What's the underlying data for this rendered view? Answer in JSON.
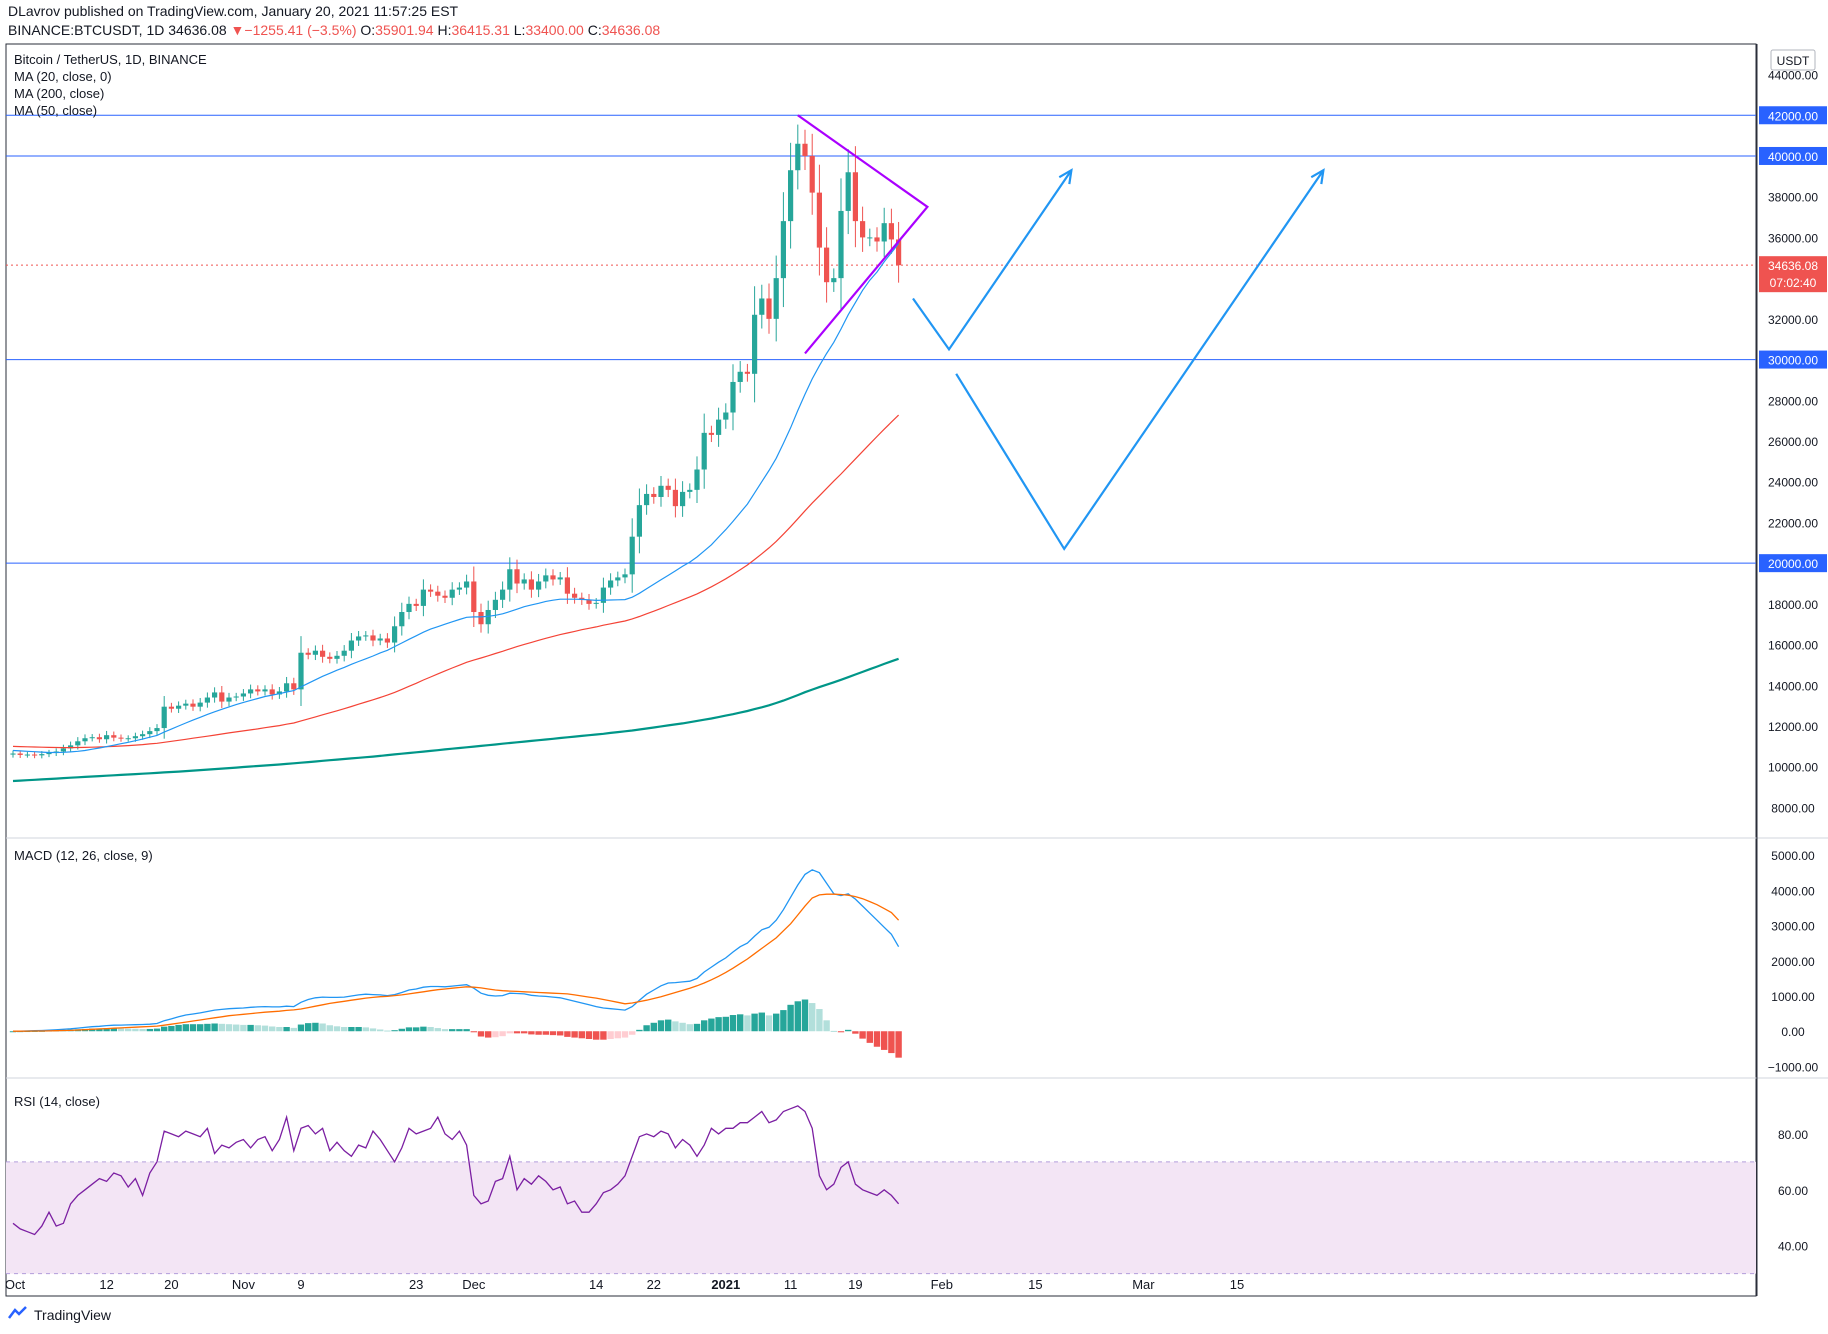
{
  "header": {
    "published_line": "DLavrov published on TradingView.com, January 20, 2021 11:57:25 EST",
    "symbol": "BINANCE:BTCUSDT, 1D",
    "last": "34636.08",
    "change": "−1255.41 (−3.5%)",
    "o_label": "O:",
    "o_val": "35901.94",
    "h_label": "H:",
    "h_val": "36415.31",
    "l_label": "L:",
    "l_val": "33400.00",
    "c_label": "C:",
    "c_val": "34636.08"
  },
  "legend": {
    "title": "Bitcoin / TetherUS, 1D, BINANCE",
    "ma20": "MA (20, close, 0)",
    "ma200": "MA (200, close)",
    "ma50": "MA (50, close)",
    "macd": "MACD (12, 26, close, 9)",
    "rsi": "RSI (14, close)"
  },
  "currency": "USDT",
  "price_badge": {
    "price": "34636.08",
    "countdown": "07:02:40"
  },
  "footer": {
    "brand": "TradingView"
  },
  "colors": {
    "up": "#26a69a",
    "down": "#ef5350",
    "ma20": "#2196f3",
    "ma50": "#f44336",
    "ma200": "#009688",
    "hline": "#2962ff",
    "triangle": "#aa00ff",
    "arrow": "#2196f3",
    "macd": "#2196f3",
    "signal": "#ff6d00",
    "rsi": "#7b1fa2",
    "rsi_band": "#f3e5f5"
  },
  "chart_data": {
    "type": "candlestick",
    "x_ticks": [
      "Oct",
      "12",
      "20",
      "Nov",
      "9",
      "23",
      "Dec",
      "14",
      "22",
      "2021",
      "11",
      "19",
      "Feb",
      "15",
      "Mar",
      "15"
    ],
    "price_axis_ticks": [
      "44000.00",
      "42000.00",
      "40000.00",
      "38000.00",
      "36000.00",
      "34000.00",
      "32000.00",
      "30000.00",
      "28000.00",
      "26000.00",
      "24000.00",
      "22000.00",
      "20000.00",
      "18000.00",
      "16000.00",
      "14000.00",
      "12000.00",
      "10000.00",
      "8000.00"
    ],
    "highlighted_levels": [
      "42000.00",
      "40000.00",
      "30000.00",
      "20000.00"
    ],
    "horizontal_levels": [
      42000,
      40000,
      30000,
      20000
    ],
    "price_range": [
      6500,
      45500
    ],
    "macd_axis_ticks": [
      "5000.00",
      "4000.00",
      "3000.00",
      "2000.00",
      "1000.00",
      "0.00",
      "−1000.00"
    ],
    "macd_range": [
      -1100,
      5200
    ],
    "rsi_axis_ticks": [
      "80.00",
      "60.00",
      "40.00"
    ],
    "rsi_range": [
      22,
      100
    ],
    "rsi_band": [
      30,
      70
    ],
    "closes": [
      10650,
      10580,
      10600,
      10560,
      10620,
      10680,
      10750,
      10900,
      11050,
      11250,
      11400,
      11450,
      11350,
      11550,
      11430,
      11380,
      11400,
      11500,
      11600,
      11750,
      11900,
      12950,
      12850,
      13000,
      13100,
      12950,
      13150,
      13400,
      13650,
      13200,
      13400,
      13450,
      13600,
      13800,
      13700,
      13800,
      13550,
      13700,
      14100,
      13800,
      15600,
      15500,
      15700,
      15400,
      15300,
      15450,
      15700,
      16200,
      16400,
      16450,
      16200,
      16300,
      16100,
      16900,
      17600,
      18000,
      17900,
      18700,
      18600,
      18400,
      18300,
      18700,
      18800,
      19100,
      17600,
      17000,
      17700,
      18200,
      18700,
      19700,
      19000,
      19200,
      18700,
      19100,
      19400,
      19200,
      19300,
      18500,
      18300,
      18200,
      18000,
      18050,
      18800,
      19150,
      19300,
      19450,
      21300,
      22850,
      23400,
      23250,
      23800,
      23600,
      22800,
      23500,
      23600,
      24600,
      26400,
      26300,
      27050,
      27400,
      28900,
      29400,
      29300,
      32200,
      33000,
      32000,
      34000,
      36800,
      39300,
      40600,
      40000,
      38200,
      35500,
      33800,
      34000,
      37300,
      39200,
      36800,
      36000,
      36000,
      35800,
      36700,
      35900,
      34636
    ],
    "ma20": [
      10800,
      10780,
      10760,
      10740,
      10720,
      10700,
      10700,
      10710,
      10730,
      10760,
      10800,
      10860,
      10920,
      10990,
      11060,
      11130,
      11200,
      11280,
      11360,
      11450,
      11540,
      11700,
      11850,
      12000,
      12150,
      12290,
      12430,
      12570,
      12700,
      12820,
      12940,
      13050,
      13160,
      13260,
      13350,
      13450,
      13520,
      13590,
      13670,
      13740,
      13920,
      14100,
      14270,
      14440,
      14590,
      14740,
      14880,
      15030,
      15170,
      15300,
      15440,
      15590,
      15720,
      15900,
      16080,
      16260,
      16430,
      16610,
      16760,
      16880,
      17000,
      17120,
      17230,
      17340,
      17360,
      17360,
      17390,
      17440,
      17510,
      17620,
      17740,
      17860,
      17950,
      18030,
      18120,
      18180,
      18230,
      18230,
      18230,
      18220,
      18200,
      18170,
      18180,
      18190,
      18200,
      18210,
      18330,
      18520,
      18740,
      18960,
      19180,
      19400,
      19620,
      19850,
      20050,
      20300,
      20600,
      20900,
      21280,
      21650,
      22050,
      22480,
      22900,
      23450,
      24000,
      24550,
      25150,
      25880,
      26650,
      27500,
      28300,
      29050,
      29700,
      30300,
      30850,
      31500,
      32200,
      32800,
      33400,
      33900,
      34300,
      34800,
      35250,
      35700
    ],
    "ma50": [
      11000,
      10990,
      10980,
      10970,
      10960,
      10950,
      10945,
      10940,
      10940,
      10945,
      10950,
      10960,
      10970,
      10985,
      11000,
      11020,
      11040,
      11065,
      11090,
      11120,
      11150,
      11200,
      11250,
      11300,
      11350,
      11400,
      11450,
      11500,
      11555,
      11610,
      11660,
      11710,
      11760,
      11810,
      11860,
      11920,
      11970,
      12020,
      12090,
      12150,
      12250,
      12350,
      12450,
      12550,
      12650,
      12750,
      12850,
      12960,
      13070,
      13180,
      13290,
      13400,
      13520,
      13650,
      13800,
      13950,
      14100,
      14260,
      14410,
      14560,
      14710,
      14850,
      14990,
      15130,
      15240,
      15340,
      15450,
      15560,
      15670,
      15790,
      15900,
      16010,
      16110,
      16210,
      16310,
      16400,
      16490,
      16570,
      16650,
      16730,
      16800,
      16870,
      16950,
      17020,
      17090,
      17160,
      17260,
      17380,
      17510,
      17640,
      17780,
      17920,
      18060,
      18200,
      18340,
      18490,
      18660,
      18840,
      19030,
      19230,
      19450,
      19680,
      19910,
      20180,
      20460,
      20750,
      21070,
      21420,
      21790,
      22180,
      22570,
      22950,
      23310,
      23670,
      24030,
      24380,
      24750,
      25120,
      25490,
      25860,
      26220,
      26580,
      26930,
      27270
    ],
    "ma200": [
      9300,
      9320,
      9340,
      9360,
      9380,
      9400,
      9420,
      9440,
      9460,
      9480,
      9500,
      9520,
      9540,
      9560,
      9580,
      9600,
      9620,
      9640,
      9660,
      9680,
      9700,
      9720,
      9740,
      9760,
      9785,
      9810,
      9835,
      9860,
      9885,
      9910,
      9935,
      9960,
      9985,
      10010,
      10035,
      10060,
      10085,
      10110,
      10140,
      10170,
      10200,
      10230,
      10260,
      10290,
      10320,
      10350,
      10380,
      10410,
      10440,
      10470,
      10500,
      10535,
      10570,
      10605,
      10640,
      10675,
      10710,
      10745,
      10780,
      10815,
      10850,
      10885,
      10920,
      10955,
      10990,
      11025,
      11060,
      11095,
      11130,
      11165,
      11200,
      11235,
      11270,
      11305,
      11340,
      11375,
      11410,
      11445,
      11480,
      11515,
      11550,
      11585,
      11620,
      11660,
      11700,
      11740,
      11780,
      11830,
      11880,
      11930,
      11980,
      12030,
      12080,
      12130,
      12190,
      12250,
      12310,
      12370,
      12440,
      12510,
      12580,
      12660,
      12740,
      12830,
      12920,
      13020,
      13130,
      13250,
      13380,
      13520,
      13660,
      13790,
      13910,
      14030,
      14150,
      14270,
      14400,
      14530,
      14660,
      14790,
      14920,
      15050,
      15180,
      15300
    ],
    "macd": [
      0,
      5,
      10,
      15,
      20,
      30,
      40,
      55,
      70,
      90,
      110,
      130,
      140,
      160,
      170,
      175,
      180,
      185,
      190,
      200,
      220,
      300,
      350,
      410,
      460,
      490,
      520,
      560,
      600,
      620,
      640,
      650,
      660,
      680,
      690,
      700,
      690,
      690,
      710,
      700,
      820,
      900,
      950,
      970,
      960,
      960,
      970,
      1000,
      1030,
      1050,
      1040,
      1030,
      1010,
      1040,
      1100,
      1170,
      1200,
      1250,
      1270,
      1270,
      1260,
      1280,
      1300,
      1320,
      1220,
      1080,
      1020,
      1000,
      1010,
      1080,
      1070,
      1060,
      1020,
      1000,
      990,
      970,
      950,
      900,
      850,
      800,
      750,
      700,
      660,
      640,
      620,
      600,
      700,
      880,
      1050,
      1170,
      1290,
      1370,
      1380,
      1400,
      1420,
      1500,
      1680,
      1820,
      1960,
      2080,
      2250,
      2400,
      2500,
      2700,
      2880,
      2950,
      3150,
      3450,
      3800,
      4150,
      4450,
      4580,
      4500,
      4200,
      3900,
      3850,
      3900,
      3750,
      3550,
      3350,
      3150,
      2950,
      2750,
      2400
    ],
    "signal": [
      0,
      2,
      4,
      6,
      8,
      10,
      15,
      20,
      25,
      35,
      45,
      55,
      65,
      75,
      85,
      95,
      105,
      115,
      125,
      135,
      145,
      170,
      200,
      230,
      260,
      290,
      320,
      350,
      380,
      410,
      440,
      460,
      480,
      500,
      520,
      540,
      555,
      570,
      590,
      605,
      630,
      670,
      710,
      750,
      790,
      820,
      850,
      880,
      910,
      940,
      960,
      980,
      990,
      1010,
      1030,
      1060,
      1090,
      1120,
      1150,
      1180,
      1200,
      1220,
      1240,
      1260,
      1250,
      1230,
      1200,
      1170,
      1150,
      1140,
      1130,
      1120,
      1110,
      1100,
      1090,
      1080,
      1070,
      1060,
      1030,
      1000,
      970,
      940,
      900,
      860,
      820,
      780,
      800,
      840,
      880,
      930,
      980,
      1040,
      1100,
      1160,
      1220,
      1290,
      1370,
      1460,
      1560,
      1670,
      1790,
      1920,
      2050,
      2200,
      2350,
      2500,
      2650,
      2850,
      3050,
      3300,
      3550,
      3780,
      3870,
      3890,
      3890,
      3880,
      3860,
      3820,
      3760,
      3680,
      3590,
      3480,
      3370,
      3150
    ],
    "rsi": [
      48,
      46,
      45,
      44,
      47,
      52,
      47,
      48,
      55,
      58,
      60,
      62,
      64,
      63,
      66,
      65,
      61,
      64,
      58,
      66,
      70,
      81,
      80,
      79,
      81,
      80,
      79,
      82,
      73,
      76,
      75,
      77,
      78,
      75,
      78,
      79,
      74,
      78,
      86,
      74,
      82,
      83,
      80,
      82,
      74,
      77,
      74,
      72,
      76,
      75,
      81,
      78,
      74,
      70,
      75,
      82,
      80,
      81,
      82,
      86,
      80,
      78,
      81,
      76,
      58,
      55,
      56,
      63,
      64,
      72,
      60,
      64,
      62,
      65,
      63,
      60,
      61,
      55,
      56,
      52,
      52,
      55,
      59,
      60,
      62,
      65,
      72,
      79,
      80,
      79,
      81,
      80,
      75,
      78,
      76,
      72,
      76,
      82,
      80,
      82,
      82,
      84,
      84,
      86,
      88,
      84,
      85,
      88,
      89,
      90,
      88,
      82,
      65,
      60,
      62,
      68,
      70,
      62,
      60,
      59,
      58,
      60,
      58,
      55
    ]
  }
}
